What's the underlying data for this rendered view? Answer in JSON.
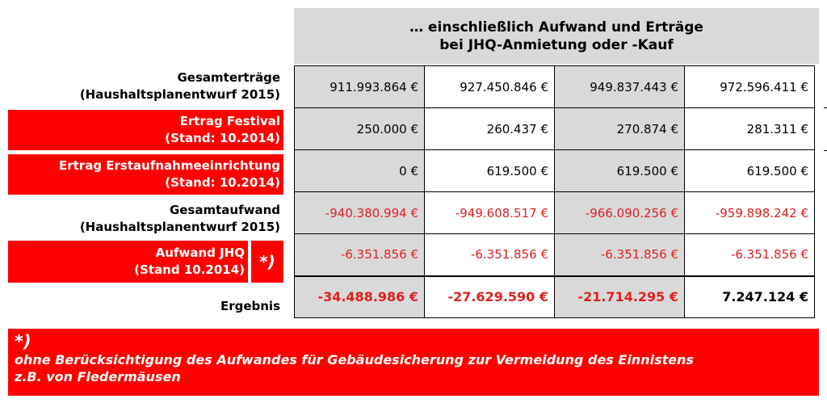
{
  "header": {
    "line1": "… einschließlich Aufwand und Erträge",
    "line2": "bei JHQ-Anmietung oder -Kauf"
  },
  "rows": [
    {
      "label1": "Gesamterträge",
      "label2": "(Haushaltsplanentwurf 2015)",
      "values": [
        "911.993.864 €",
        "927.450.846 €",
        "949.837.443 €",
        "972.596.411 €"
      ]
    },
    {
      "label1": "Ertrag Festival",
      "label2": "(Stand: 10.2014)",
      "values": [
        "250.000 €",
        "260.437 €",
        "270.874 €",
        "281.311 €"
      ]
    },
    {
      "label1": "Ertrag Erstaufnahmeeinrichtung",
      "label2": "(Stand: 10.2014)",
      "values": [
        "0 €",
        "619.500 €",
        "619.500 €",
        "619.500 €"
      ]
    },
    {
      "label1": "Gesamtaufwand",
      "label2": "(Haushaltsplanentwurf 2015)",
      "values": [
        "-940.380.994 €",
        "-949.608.517 €",
        "-966.090.256 €",
        "-959.898.242 €"
      ]
    },
    {
      "label1": "Aufwand JHQ",
      "label2": "(Stand 10.2014)",
      "marker": "*)",
      "values": [
        "-6.351.856 €",
        "-6.351.856 €",
        "-6.351.856 €",
        "-6.351.856 €"
      ]
    }
  ],
  "result": {
    "label": "Ergebnis",
    "values": [
      "-34.488.986 €",
      "-27.629.590 €",
      "-21.714.295 €",
      "7.247.124 €"
    ]
  },
  "footnote": {
    "mark": "*)",
    "line1": "ohne Berücksichtigung des Aufwandes für Gebäudesicherung zur Vermeidung des Einnistens",
    "line2": "z.B. von Fledermäusen"
  },
  "colors": {
    "accent_red": "#ff0000",
    "negative_text": "#e02020",
    "shade_gray": "#d9d9d9"
  }
}
